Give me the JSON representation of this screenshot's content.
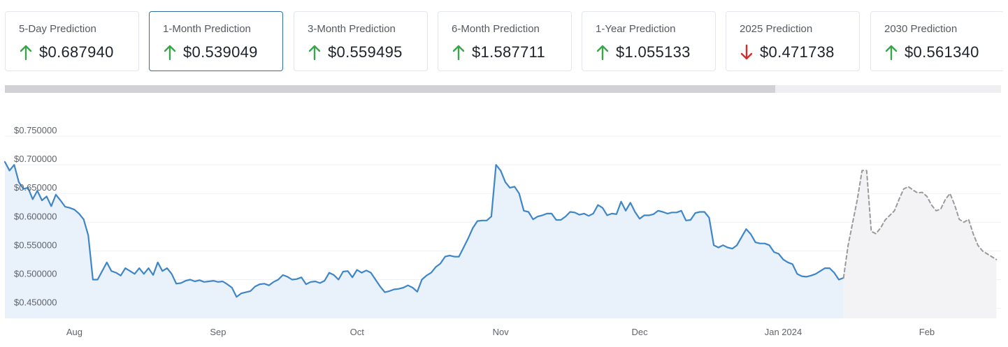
{
  "cards": [
    {
      "label": "5-Day Prediction",
      "value": "$0.687940",
      "direction": "up"
    },
    {
      "label": "1-Month Prediction",
      "value": "$0.539049",
      "direction": "up",
      "active": true
    },
    {
      "label": "3-Month Prediction",
      "value": "$0.559495",
      "direction": "up"
    },
    {
      "label": "6-Month Prediction",
      "value": "$1.587711",
      "direction": "up"
    },
    {
      "label": "1-Year Prediction",
      "value": "$1.055133",
      "direction": "up"
    },
    {
      "label": "2025 Prediction",
      "value": "$0.471738",
      "direction": "down"
    },
    {
      "label": "2030 Prediction",
      "value": "$0.561340",
      "direction": "up"
    }
  ],
  "colors": {
    "up": "#3aa54a",
    "down": "#d62c2c",
    "line": "#3f86c8",
    "area": "#e9f1fb",
    "forecast_line": "#9a9a9a",
    "forecast_area": "#f3f3f5",
    "active_border": "#2f6da6"
  },
  "scrollbar": {
    "thumb_fraction": 0.773
  },
  "chart_data": {
    "type": "line",
    "ylim": [
      0.45,
      0.75
    ],
    "y_ticks": [
      "$0.750000",
      "$0.700000",
      "$0.650000",
      "$0.600000",
      "$0.550000",
      "$0.500000",
      "$0.450000"
    ],
    "y_tick_values": [
      0.75,
      0.7,
      0.65,
      0.6,
      0.55,
      0.5,
      0.45
    ],
    "x_labels": [
      "Aug",
      "Sep",
      "Oct",
      "Nov",
      "Dec",
      "Jan 2024",
      "Feb"
    ],
    "x_label_dates": [
      "2023-08-01",
      "2023-09-01",
      "2023-10-01",
      "2023-11-01",
      "2023-12-01",
      "2024-01-01",
      "2024-02-01"
    ],
    "xlim": [
      "2023-07-17",
      "2024-02-17"
    ],
    "grid": true,
    "series": [
      {
        "kind": "historical",
        "points": [
          [
            "2023-07-17",
            0.705
          ],
          [
            "2023-07-18",
            0.69
          ],
          [
            "2023-07-19",
            0.7
          ],
          [
            "2023-07-20",
            0.67
          ],
          [
            "2023-07-21",
            0.658
          ],
          [
            "2023-07-22",
            0.66
          ],
          [
            "2023-07-23",
            0.64
          ],
          [
            "2023-07-24",
            0.655
          ],
          [
            "2023-07-25",
            0.638
          ],
          [
            "2023-07-26",
            0.645
          ],
          [
            "2023-07-27",
            0.628
          ],
          [
            "2023-07-28",
            0.648
          ],
          [
            "2023-07-29",
            0.638
          ],
          [
            "2023-07-30",
            0.627
          ],
          [
            "2023-07-31",
            0.625
          ],
          [
            "2023-08-01",
            0.622
          ],
          [
            "2023-08-02",
            0.615
          ],
          [
            "2023-08-03",
            0.605
          ],
          [
            "2023-08-04",
            0.577
          ],
          [
            "2023-08-05",
            0.5
          ],
          [
            "2023-08-06",
            0.5
          ],
          [
            "2023-08-07",
            0.515
          ],
          [
            "2023-08-08",
            0.53
          ],
          [
            "2023-08-09",
            0.515
          ],
          [
            "2023-08-10",
            0.512
          ],
          [
            "2023-08-11",
            0.507
          ],
          [
            "2023-08-12",
            0.52
          ],
          [
            "2023-08-13",
            0.515
          ],
          [
            "2023-08-14",
            0.51
          ],
          [
            "2023-08-15",
            0.52
          ],
          [
            "2023-08-16",
            0.51
          ],
          [
            "2023-08-17",
            0.52
          ],
          [
            "2023-08-18",
            0.508
          ],
          [
            "2023-08-19",
            0.53
          ],
          [
            "2023-08-20",
            0.515
          ],
          [
            "2023-08-21",
            0.52
          ],
          [
            "2023-08-22",
            0.51
          ],
          [
            "2023-08-23",
            0.493
          ],
          [
            "2023-08-24",
            0.494
          ],
          [
            "2023-08-25",
            0.498
          ],
          [
            "2023-08-26",
            0.5
          ],
          [
            "2023-08-27",
            0.497
          ],
          [
            "2023-08-28",
            0.499
          ],
          [
            "2023-08-29",
            0.496
          ],
          [
            "2023-08-30",
            0.497
          ],
          [
            "2023-08-31",
            0.498
          ],
          [
            "2023-09-01",
            0.496
          ],
          [
            "2023-09-02",
            0.497
          ],
          [
            "2023-09-03",
            0.492
          ],
          [
            "2023-09-04",
            0.486
          ],
          [
            "2023-09-05",
            0.47
          ],
          [
            "2023-09-06",
            0.476
          ],
          [
            "2023-09-07",
            0.478
          ],
          [
            "2023-09-08",
            0.48
          ],
          [
            "2023-09-09",
            0.488
          ],
          [
            "2023-09-10",
            0.492
          ],
          [
            "2023-09-11",
            0.493
          ],
          [
            "2023-09-12",
            0.49
          ],
          [
            "2023-09-13",
            0.496
          ],
          [
            "2023-09-14",
            0.5
          ],
          [
            "2023-09-15",
            0.508
          ],
          [
            "2023-09-16",
            0.505
          ],
          [
            "2023-09-17",
            0.5
          ],
          [
            "2023-09-18",
            0.501
          ],
          [
            "2023-09-19",
            0.504
          ],
          [
            "2023-09-20",
            0.492
          ],
          [
            "2023-09-21",
            0.496
          ],
          [
            "2023-09-22",
            0.497
          ],
          [
            "2023-09-23",
            0.494
          ],
          [
            "2023-09-24",
            0.498
          ],
          [
            "2023-09-25",
            0.512
          ],
          [
            "2023-09-26",
            0.508
          ],
          [
            "2023-09-27",
            0.5
          ],
          [
            "2023-09-28",
            0.514
          ],
          [
            "2023-09-29",
            0.515
          ],
          [
            "2023-09-30",
            0.504
          ],
          [
            "2023-10-01",
            0.517
          ],
          [
            "2023-10-02",
            0.512
          ],
          [
            "2023-10-03",
            0.516
          ],
          [
            "2023-10-04",
            0.512
          ],
          [
            "2023-10-05",
            0.5
          ],
          [
            "2023-10-06",
            0.488
          ],
          [
            "2023-10-07",
            0.478
          ],
          [
            "2023-10-08",
            0.48
          ],
          [
            "2023-10-09",
            0.483
          ],
          [
            "2023-10-10",
            0.484
          ],
          [
            "2023-10-11",
            0.486
          ],
          [
            "2023-10-12",
            0.49
          ],
          [
            "2023-10-13",
            0.486
          ],
          [
            "2023-10-14",
            0.479
          ],
          [
            "2023-10-15",
            0.5
          ],
          [
            "2023-10-16",
            0.507
          ],
          [
            "2023-10-17",
            0.512
          ],
          [
            "2023-10-18",
            0.522
          ],
          [
            "2023-10-19",
            0.528
          ],
          [
            "2023-10-20",
            0.54
          ],
          [
            "2023-10-21",
            0.542
          ],
          [
            "2023-10-22",
            0.54
          ],
          [
            "2023-10-23",
            0.54
          ],
          [
            "2023-10-24",
            0.556
          ],
          [
            "2023-10-25",
            0.572
          ],
          [
            "2023-10-26",
            0.59
          ],
          [
            "2023-10-27",
            0.602
          ],
          [
            "2023-10-28",
            0.603
          ],
          [
            "2023-10-29",
            0.603
          ],
          [
            "2023-10-30",
            0.61
          ],
          [
            "2023-10-31",
            0.7
          ],
          [
            "2023-11-01",
            0.69
          ],
          [
            "2023-11-02",
            0.67
          ],
          [
            "2023-11-03",
            0.66
          ],
          [
            "2023-11-04",
            0.662
          ],
          [
            "2023-11-05",
            0.65
          ],
          [
            "2023-11-06",
            0.62
          ],
          [
            "2023-11-07",
            0.618
          ],
          [
            "2023-11-08",
            0.605
          ],
          [
            "2023-11-09",
            0.61
          ],
          [
            "2023-11-10",
            0.612
          ],
          [
            "2023-11-11",
            0.615
          ],
          [
            "2023-11-12",
            0.615
          ],
          [
            "2023-11-13",
            0.604
          ],
          [
            "2023-11-14",
            0.604
          ],
          [
            "2023-11-15",
            0.61
          ],
          [
            "2023-11-16",
            0.618
          ],
          [
            "2023-11-17",
            0.617
          ],
          [
            "2023-11-18",
            0.613
          ],
          [
            "2023-11-19",
            0.615
          ],
          [
            "2023-11-20",
            0.611
          ],
          [
            "2023-11-21",
            0.615
          ],
          [
            "2023-11-22",
            0.63
          ],
          [
            "2023-11-23",
            0.625
          ],
          [
            "2023-11-24",
            0.612
          ],
          [
            "2023-11-25",
            0.615
          ],
          [
            "2023-11-26",
            0.614
          ],
          [
            "2023-11-27",
            0.636
          ],
          [
            "2023-11-28",
            0.62
          ],
          [
            "2023-11-29",
            0.634
          ],
          [
            "2023-11-30",
            0.618
          ],
          [
            "2023-12-01",
            0.606
          ],
          [
            "2023-12-02",
            0.612
          ],
          [
            "2023-12-03",
            0.612
          ],
          [
            "2023-12-04",
            0.614
          ],
          [
            "2023-12-05",
            0.62
          ],
          [
            "2023-12-06",
            0.618
          ],
          [
            "2023-12-07",
            0.615
          ],
          [
            "2023-12-08",
            0.617
          ],
          [
            "2023-12-09",
            0.617
          ],
          [
            "2023-12-10",
            0.62
          ],
          [
            "2023-12-11",
            0.603
          ],
          [
            "2023-12-12",
            0.604
          ],
          [
            "2023-12-13",
            0.616
          ],
          [
            "2023-12-14",
            0.618
          ],
          [
            "2023-12-15",
            0.618
          ],
          [
            "2023-12-16",
            0.608
          ],
          [
            "2023-12-17",
            0.56
          ],
          [
            "2023-12-18",
            0.556
          ],
          [
            "2023-12-19",
            0.56
          ],
          [
            "2023-12-20",
            0.556
          ],
          [
            "2023-12-21",
            0.554
          ],
          [
            "2023-12-22",
            0.56
          ],
          [
            "2023-12-23",
            0.574
          ],
          [
            "2023-12-24",
            0.588
          ],
          [
            "2023-12-25",
            0.579
          ],
          [
            "2023-12-26",
            0.565
          ],
          [
            "2023-12-27",
            0.563
          ],
          [
            "2023-12-28",
            0.563
          ],
          [
            "2023-12-29",
            0.56
          ],
          [
            "2023-12-30",
            0.548
          ],
          [
            "2023-12-31",
            0.545
          ],
          [
            "2024-01-01",
            0.535
          ],
          [
            "2024-01-02",
            0.53
          ],
          [
            "2024-01-03",
            0.527
          ],
          [
            "2024-01-04",
            0.51
          ],
          [
            "2024-01-05",
            0.506
          ],
          [
            "2024-01-06",
            0.505
          ],
          [
            "2024-01-07",
            0.507
          ],
          [
            "2024-01-08",
            0.51
          ],
          [
            "2024-01-09",
            0.515
          ],
          [
            "2024-01-10",
            0.52
          ],
          [
            "2024-01-11",
            0.52
          ],
          [
            "2024-01-12",
            0.512
          ],
          [
            "2024-01-13",
            0.5
          ],
          [
            "2024-01-14",
            0.503
          ]
        ]
      },
      {
        "kind": "forecast",
        "points": [
          [
            "2024-01-14",
            0.503
          ],
          [
            "2024-01-15",
            0.56
          ],
          [
            "2024-01-16",
            0.6
          ],
          [
            "2024-01-17",
            0.64
          ],
          [
            "2024-01-18",
            0.69
          ],
          [
            "2024-01-19",
            0.69
          ],
          [
            "2024-01-20",
            0.584
          ],
          [
            "2024-01-21",
            0.58
          ],
          [
            "2024-01-22",
            0.59
          ],
          [
            "2024-01-23",
            0.604
          ],
          [
            "2024-01-24",
            0.612
          ],
          [
            "2024-01-25",
            0.62
          ],
          [
            "2024-01-26",
            0.64
          ],
          [
            "2024-01-27",
            0.658
          ],
          [
            "2024-01-28",
            0.662
          ],
          [
            "2024-01-29",
            0.656
          ],
          [
            "2024-01-30",
            0.651
          ],
          [
            "2024-01-31",
            0.652
          ],
          [
            "2024-02-01",
            0.645
          ],
          [
            "2024-02-02",
            0.63
          ],
          [
            "2024-02-03",
            0.62
          ],
          [
            "2024-02-04",
            0.623
          ],
          [
            "2024-02-05",
            0.64
          ],
          [
            "2024-02-06",
            0.65
          ],
          [
            "2024-02-07",
            0.63
          ],
          [
            "2024-02-08",
            0.605
          ],
          [
            "2024-02-09",
            0.6
          ],
          [
            "2024-02-10",
            0.605
          ],
          [
            "2024-02-11",
            0.58
          ],
          [
            "2024-02-12",
            0.56
          ],
          [
            "2024-02-13",
            0.55
          ],
          [
            "2024-02-14",
            0.545
          ],
          [
            "2024-02-15",
            0.54
          ],
          [
            "2024-02-16",
            0.535
          ]
        ]
      }
    ]
  }
}
